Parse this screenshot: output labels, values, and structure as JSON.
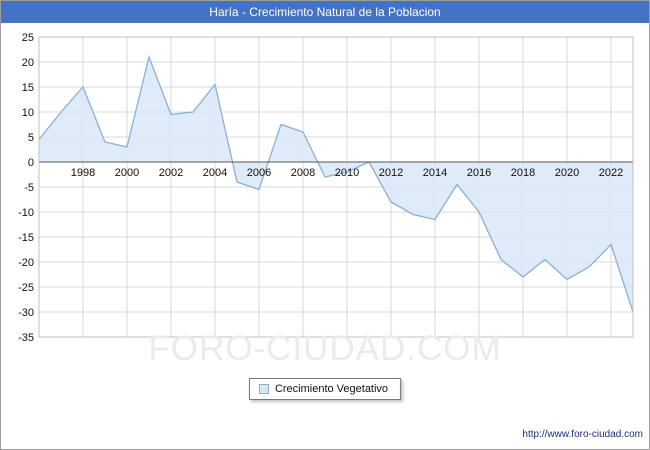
{
  "header": {
    "title": "Haría - Crecimiento Natural de la Poblacion",
    "bg": "#4472c4",
    "text_color": "#ffffff"
  },
  "chart_data": {
    "type": "area",
    "title": "Haría - Crecimiento Natural de la Poblacion",
    "xlabel": "",
    "ylabel": "",
    "x": [
      1996,
      1997,
      1998,
      1999,
      2000,
      2001,
      2002,
      2003,
      2004,
      2005,
      2006,
      2007,
      2008,
      2009,
      2010,
      2011,
      2012,
      2013,
      2014,
      2015,
      2016,
      2017,
      2018,
      2019,
      2020,
      2021,
      2022,
      2023
    ],
    "values": [
      4.5,
      10,
      15,
      4,
      3,
      21,
      9.5,
      10,
      15.5,
      -4,
      -5.5,
      7.5,
      6,
      -3,
      -2,
      0,
      -8,
      -10.5,
      -11.5,
      -4.5,
      -10,
      -19.5,
      -23,
      -19.5,
      -23.5,
      -21,
      -16.5,
      -30
    ],
    "series_name": "Crecimiento Vegetativo",
    "ylim": [
      -35,
      25
    ],
    "ytick_step": 5,
    "xticks": [
      1998,
      2000,
      2002,
      2004,
      2006,
      2008,
      2010,
      2012,
      2014,
      2016,
      2018,
      2020,
      2022
    ],
    "grid": true,
    "legend_position": "bottom",
    "line_color": "#8aafd8",
    "fill_color": "#d9e8f7",
    "grid_color": "#d9d9d9",
    "zero_line_color": "#555555",
    "border_color": "#c0c0c0"
  },
  "legend": {
    "label": "Crecimiento Vegetativo"
  },
  "watermark": "FORO-CIUDAD.COM",
  "footer": {
    "url": "http://www.foro-ciudad.com"
  }
}
